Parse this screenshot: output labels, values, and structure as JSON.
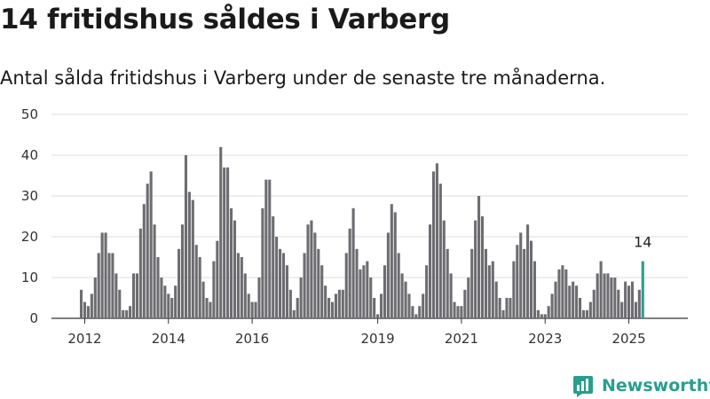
{
  "header": {
    "title": "14 fritidshus såldes i Varberg",
    "subtitle": "Antal sålda fritidshus i Varberg under de senaste tre månaderna."
  },
  "branding": {
    "name": "Newsworthy",
    "icon": "newsworthy-logo-icon",
    "color": "#2a9d8f"
  },
  "chart_data": {
    "type": "bar",
    "title": "14 fritidshus såldes i Varberg",
    "subtitle": "Antal sålda fritidshus i Varberg under de senaste tre månaderna.",
    "xlabel": "",
    "ylabel": "",
    "ylim": [
      0,
      50
    ],
    "yticks": [
      0,
      10,
      20,
      30,
      40,
      50
    ],
    "xticks": [
      "2012",
      "2014",
      "2016",
      "2019",
      "2021",
      "2023",
      "2025"
    ],
    "grid": true,
    "bar_color": "#6d6c71",
    "highlight_color": "#2a9d8f",
    "first_period": "2011-12",
    "last_value_label": "14",
    "values": [
      7,
      4,
      3,
      6,
      10,
      16,
      21,
      21,
      16,
      16,
      11,
      7,
      2,
      2,
      3,
      11,
      11,
      22,
      28,
      33,
      36,
      23,
      15,
      10,
      8,
      6,
      5,
      8,
      17,
      23,
      40,
      31,
      29,
      18,
      15,
      9,
      5,
      4,
      14,
      19,
      42,
      37,
      37,
      27,
      24,
      16,
      15,
      11,
      6,
      4,
      4,
      10,
      27,
      34,
      34,
      25,
      20,
      17,
      16,
      13,
      7,
      2,
      5,
      10,
      16,
      23,
      24,
      21,
      17,
      13,
      8,
      5,
      4,
      6,
      7,
      7,
      16,
      22,
      27,
      17,
      12,
      13,
      14,
      10,
      5,
      1,
      6,
      13,
      21,
      28,
      26,
      16,
      11,
      9,
      6,
      3,
      1,
      3,
      6,
      13,
      23,
      36,
      38,
      33,
      24,
      17,
      11,
      4,
      3,
      3,
      7,
      10,
      17,
      24,
      30,
      25,
      17,
      13,
      14,
      9,
      5,
      2,
      5,
      5,
      14,
      18,
      21,
      17,
      23,
      19,
      14,
      2,
      1,
      1,
      3,
      6,
      9,
      12,
      13,
      12,
      8,
      9,
      8,
      5,
      2,
      2,
      4,
      7,
      11,
      14,
      11,
      11,
      10,
      10,
      7,
      4,
      9,
      8,
      9,
      4,
      7,
      14
    ]
  }
}
